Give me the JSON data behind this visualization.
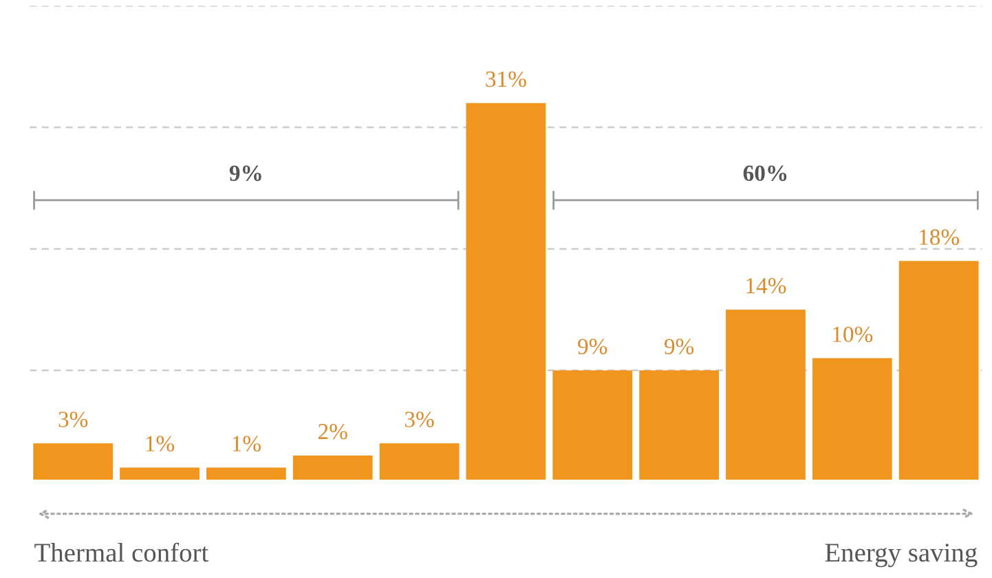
{
  "chart_data": {
    "type": "bar",
    "categories": [
      null,
      null,
      null,
      null,
      null,
      null,
      null,
      null,
      null,
      null,
      null
    ],
    "values": [
      3,
      1,
      1,
      2,
      3,
      31,
      9,
      9,
      14,
      10,
      18
    ],
    "value_labels": [
      "3%",
      "1%",
      "1%",
      "2%",
      "3%",
      "31%",
      "9%",
      "9%",
      "14%",
      "10%",
      "18%"
    ],
    "color": "#f0961e",
    "ylim": [
      0,
      39
    ],
    "yticks": [
      {
        "value": 9,
        "label": null
      },
      {
        "value": 19,
        "label": null
      },
      {
        "value": 29,
        "label": null
      },
      {
        "value": 39,
        "label": null
      }
    ],
    "grid": "y",
    "annotations": [
      "9%",
      "60%",
      "Thermal confort",
      "Energy saving"
    ]
  }
}
